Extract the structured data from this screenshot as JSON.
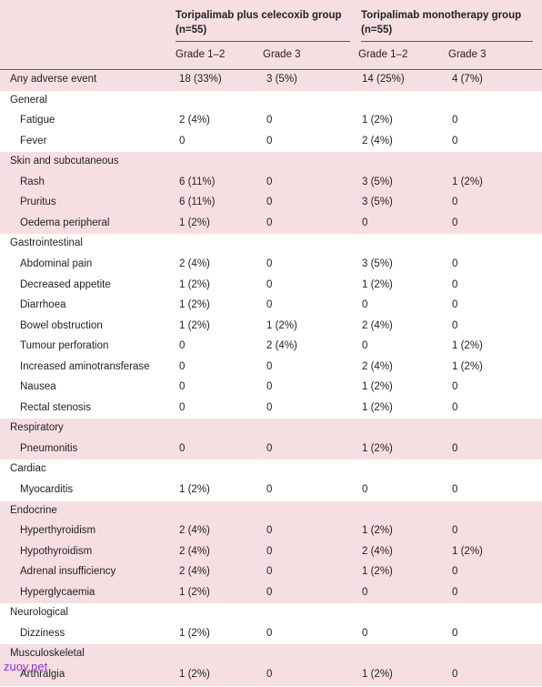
{
  "table": {
    "groups": [
      {
        "name": "Toripalimab plus celecoxib group",
        "n": "(n=55)"
      },
      {
        "name": "Toripalimab monotherapy group",
        "n": "(n=55)"
      }
    ],
    "subheaders": [
      "Grade 1–2",
      "Grade 3",
      "Grade 1–2",
      "Grade 3"
    ],
    "overall": {
      "label": "Any adverse event",
      "cells": [
        "18 (33%)",
        "3 (5%)",
        "14 (25%)",
        "4 (7%)"
      ]
    },
    "sections": [
      {
        "title": "General",
        "rows": [
          {
            "label": "Fatigue",
            "cells": [
              "2 (4%)",
              "0",
              "1 (2%)",
              "0"
            ]
          },
          {
            "label": "Fever",
            "cells": [
              "0",
              "0",
              "2 (4%)",
              "0"
            ]
          }
        ]
      },
      {
        "title": "Skin and subcutaneous",
        "rows": [
          {
            "label": "Rash",
            "cells": [
              "6 (11%)",
              "0",
              "3 (5%)",
              "1 (2%)"
            ]
          },
          {
            "label": "Pruritus",
            "cells": [
              "6 (11%)",
              "0",
              "3 (5%)",
              "0"
            ]
          },
          {
            "label": "Oedema peripheral",
            "cells": [
              "1 (2%)",
              "0",
              "0",
              "0"
            ]
          }
        ]
      },
      {
        "title": "Gastrointestinal",
        "rows": [
          {
            "label": "Abdominal pain",
            "cells": [
              "2 (4%)",
              "0",
              "3 (5%)",
              "0"
            ]
          },
          {
            "label": "Decreased appetite",
            "cells": [
              "1 (2%)",
              "0",
              "1 (2%)",
              "0"
            ]
          },
          {
            "label": "Diarrhoea",
            "cells": [
              "1 (2%)",
              "0",
              "0",
              "0"
            ]
          },
          {
            "label": "Bowel obstruction",
            "cells": [
              "1 (2%)",
              "1 (2%)",
              "2 (4%)",
              "0"
            ]
          },
          {
            "label": "Tumour perforation",
            "cells": [
              "0",
              "2 (4%)",
              "0",
              "1 (2%)"
            ]
          },
          {
            "label": "Increased aminotransferase",
            "cells": [
              "0",
              "0",
              "2 (4%)",
              "1 (2%)"
            ]
          },
          {
            "label": "Nausea",
            "cells": [
              "0",
              "0",
              "1 (2%)",
              "0"
            ]
          },
          {
            "label": "Rectal stenosis",
            "cells": [
              "0",
              "0",
              "1 (2%)",
              "0"
            ]
          }
        ]
      },
      {
        "title": "Respiratory",
        "rows": [
          {
            "label": "Pneumonitis",
            "cells": [
              "0",
              "0",
              "1 (2%)",
              "0"
            ]
          }
        ]
      },
      {
        "title": "Cardiac",
        "rows": [
          {
            "label": "Myocarditis",
            "cells": [
              "1 (2%)",
              "0",
              "0",
              "0"
            ]
          }
        ]
      },
      {
        "title": "Endocrine",
        "rows": [
          {
            "label": "Hyperthyroidism",
            "cells": [
              "2 (4%)",
              "0",
              "1 (2%)",
              "0"
            ]
          },
          {
            "label": "Hypothyroidism",
            "cells": [
              "2 (4%)",
              "0",
              "2 (4%)",
              "1 (2%)"
            ]
          },
          {
            "label": "Adrenal insufficiency",
            "cells": [
              "2 (4%)",
              "0",
              "1 (2%)",
              "0"
            ]
          },
          {
            "label": "Hyperglycaemia",
            "cells": [
              "1 (2%)",
              "0",
              "0",
              "0"
            ]
          }
        ]
      },
      {
        "title": "Neurological",
        "rows": [
          {
            "label": "Dizziness",
            "cells": [
              "1 (2%)",
              "0",
              "0",
              "0"
            ]
          }
        ]
      },
      {
        "title": "Musculoskeletal",
        "rows": [
          {
            "label": "Arthralgia",
            "cells": [
              "1 (2%)",
              "0",
              "1 (2%)",
              "0"
            ]
          }
        ]
      }
    ]
  },
  "watermark": "zuoy.net"
}
